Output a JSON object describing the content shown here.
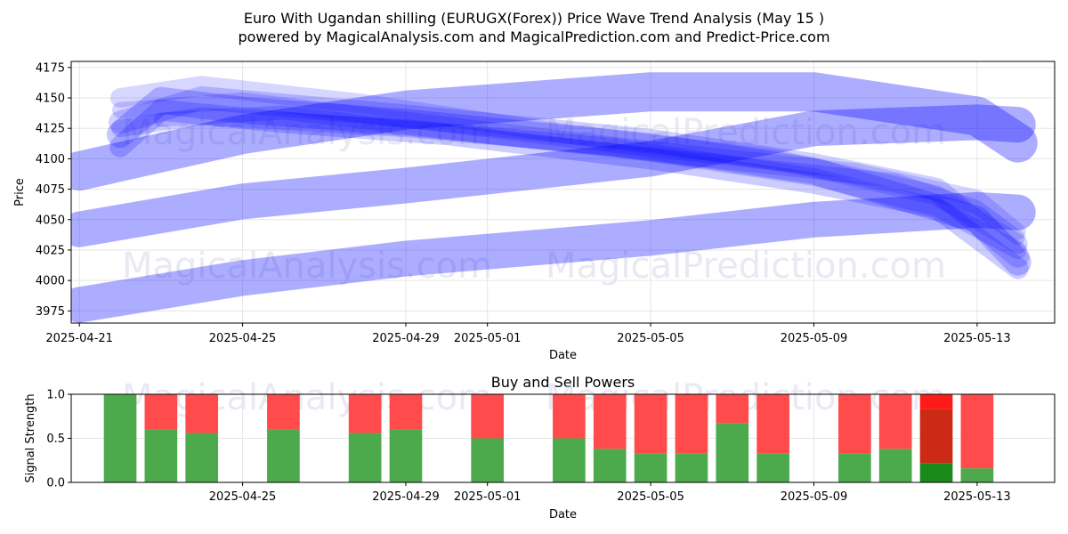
{
  "header": {
    "title_line1": "Euro With Ugandan shilling (EURUGX(Forex)) Price Wave Trend Analysis (May 15 )",
    "title_line2": "powered by MagicalAnalysis.com and MagicalPrediction.com and Predict-Price.com"
  },
  "watermarks": {
    "left": "MagicalAnalysis.com",
    "right": "MagicalPrediction.com"
  },
  "colors": {
    "wave": "#0000ff",
    "buy": "#2e9a2e",
    "sell": "#ff2a2a",
    "buy_dark": "#1a8a1a",
    "sell_dark": "#cc2a14"
  },
  "chart_data": [
    {
      "type": "area",
      "title": "",
      "xlabel": "Date",
      "ylabel": "Price",
      "x_tick_labels": [
        "2025-04-21",
        "2025-04-25",
        "2025-04-29",
        "2025-05-01",
        "2025-05-05",
        "2025-05-09",
        "2025-05-13"
      ],
      "y_ticks": [
        3975,
        4000,
        4025,
        4050,
        4075,
        4100,
        4125,
        4150,
        4175
      ],
      "xlim": [
        "2025-04-21",
        "2025-05-15"
      ],
      "ylim": [
        3965,
        4180
      ],
      "grid": true,
      "description_note": "",
      "series": [
        {
          "points": [
            [
              "2025-04-21",
              4090
            ],
            [
              "2025-04-25",
              4120
            ],
            [
              "2025-04-29",
              4140
            ],
            [
              "2025-05-05",
              4155
            ],
            [
              "2025-05-09",
              4155
            ],
            [
              "2025-05-13",
              4135
            ],
            [
              "2025-05-14",
              4113
            ]
          ]
        },
        {
          "points": [
            [
              "2025-04-21",
              4042
            ],
            [
              "2025-04-25",
              4065
            ],
            [
              "2025-04-29",
              4078
            ],
            [
              "2025-05-05",
              4100
            ],
            [
              "2025-05-09",
              4125
            ],
            [
              "2025-05-13",
              4130
            ],
            [
              "2025-05-14",
              4128
            ]
          ]
        },
        {
          "points": [
            [
              "2025-04-21",
              3980
            ],
            [
              "2025-04-25",
              4002
            ],
            [
              "2025-04-29",
              4018
            ],
            [
              "2025-05-05",
              4035
            ],
            [
              "2025-05-09",
              4050
            ],
            [
              "2025-05-13",
              4058
            ],
            [
              "2025-05-14",
              4056
            ]
          ]
        },
        {
          "points": [
            [
              "2025-04-22",
              4120
            ],
            [
              "2025-04-23",
              4148
            ],
            [
              "2025-04-25",
              4140
            ],
            [
              "2025-04-29",
              4130
            ],
            [
              "2025-05-05",
              4110
            ],
            [
              "2025-05-09",
              4090
            ],
            [
              "2025-05-13",
              4050
            ],
            [
              "2025-05-14",
              4015
            ]
          ]
        },
        {
          "points": [
            [
              "2025-04-22",
              4130
            ],
            [
              "2025-04-24",
              4150
            ],
            [
              "2025-04-29",
              4135
            ],
            [
              "2025-05-05",
              4115
            ],
            [
              "2025-05-09",
              4095
            ],
            [
              "2025-05-12",
              4075
            ],
            [
              "2025-05-14",
              4020
            ]
          ]
        },
        {
          "points": [
            [
              "2025-04-22",
              4110
            ],
            [
              "2025-04-23",
              4140
            ],
            [
              "2025-04-26",
              4130
            ],
            [
              "2025-04-30",
              4120
            ],
            [
              "2025-05-05",
              4100
            ],
            [
              "2025-05-09",
              4080
            ],
            [
              "2025-05-12",
              4060
            ],
            [
              "2025-05-14",
              4010
            ]
          ]
        },
        {
          "points": [
            [
              "2025-04-22",
              4150
            ],
            [
              "2025-04-24",
              4160
            ],
            [
              "2025-04-28",
              4145
            ],
            [
              "2025-05-03",
              4120
            ],
            [
              "2025-05-08",
              4100
            ],
            [
              "2025-05-12",
              4070
            ],
            [
              "2025-05-14",
              4030
            ]
          ]
        },
        {
          "points": [
            [
              "2025-04-22",
              4125
            ],
            [
              "2025-04-24",
              4135
            ],
            [
              "2025-04-29",
              4125
            ],
            [
              "2025-05-04",
              4110
            ],
            [
              "2025-05-09",
              4085
            ],
            [
              "2025-05-12",
              4060
            ],
            [
              "2025-05-14",
              4025
            ]
          ]
        },
        {
          "points": [
            [
              "2025-04-22",
              4140
            ],
            [
              "2025-04-25",
              4148
            ],
            [
              "2025-04-30",
              4128
            ],
            [
              "2025-05-05",
              4108
            ],
            [
              "2025-05-10",
              4090
            ],
            [
              "2025-05-13",
              4068
            ],
            [
              "2025-05-14",
              4040
            ]
          ]
        },
        {
          "points": [
            [
              "2025-04-23",
              4132
            ],
            [
              "2025-04-26",
              4138
            ],
            [
              "2025-05-01",
              4118
            ],
            [
              "2025-05-06",
              4100
            ],
            [
              "2025-05-11",
              4082
            ],
            [
              "2025-05-13",
              4060
            ],
            [
              "2025-05-14",
              4035
            ]
          ]
        }
      ]
    },
    {
      "type": "bar",
      "title": "Buy and Sell Powers",
      "xlabel": "Date",
      "ylabel": "Signal Strength",
      "x_tick_labels": [
        "2025-04-25",
        "2025-04-29",
        "2025-05-01",
        "2025-05-05",
        "2025-05-09",
        "2025-05-13"
      ],
      "y_ticks": [
        "0.0",
        "0.5",
        "1.0"
      ],
      "ylim": [
        0,
        1
      ],
      "grid": true,
      "series": [
        {
          "name": "buy",
          "color": "#4caa4c"
        },
        {
          "name": "sell",
          "color": "#ff4b4b"
        }
      ],
      "bars": [
        {
          "date": "2025-04-22",
          "buy": 1.0,
          "sell": 0.0
        },
        {
          "date": "2025-04-23",
          "buy": 0.6,
          "sell": 0.4
        },
        {
          "date": "2025-04-24",
          "buy": 0.56,
          "sell": 0.44
        },
        {
          "date": "2025-04-26",
          "buy": 0.6,
          "sell": 0.4
        },
        {
          "date": "2025-04-28",
          "buy": 0.56,
          "sell": 0.44
        },
        {
          "date": "2025-04-29",
          "buy": 0.6,
          "sell": 0.4
        },
        {
          "date": "2025-05-01",
          "buy": 0.5,
          "sell": 0.5
        },
        {
          "date": "2025-05-03",
          "buy": 0.5,
          "sell": 0.5
        },
        {
          "date": "2025-05-04",
          "buy": 0.38,
          "sell": 0.62
        },
        {
          "date": "2025-05-05",
          "buy": 0.33,
          "sell": 0.67
        },
        {
          "date": "2025-05-06",
          "buy": 0.33,
          "sell": 0.67
        },
        {
          "date": "2025-05-07",
          "buy": 0.67,
          "sell": 0.33
        },
        {
          "date": "2025-05-08",
          "buy": 0.33,
          "sell": 0.67
        },
        {
          "date": "2025-05-10",
          "buy": 0.33,
          "sell": 0.67
        },
        {
          "date": "2025-05-11",
          "buy": 0.38,
          "sell": 0.62
        },
        {
          "date": "2025-05-12",
          "buy": 0.22,
          "sell": 0.78,
          "highlight": true,
          "buy_mid": 0.83
        },
        {
          "date": "2025-05-13",
          "buy": 0.16,
          "sell": 0.84
        }
      ]
    }
  ]
}
